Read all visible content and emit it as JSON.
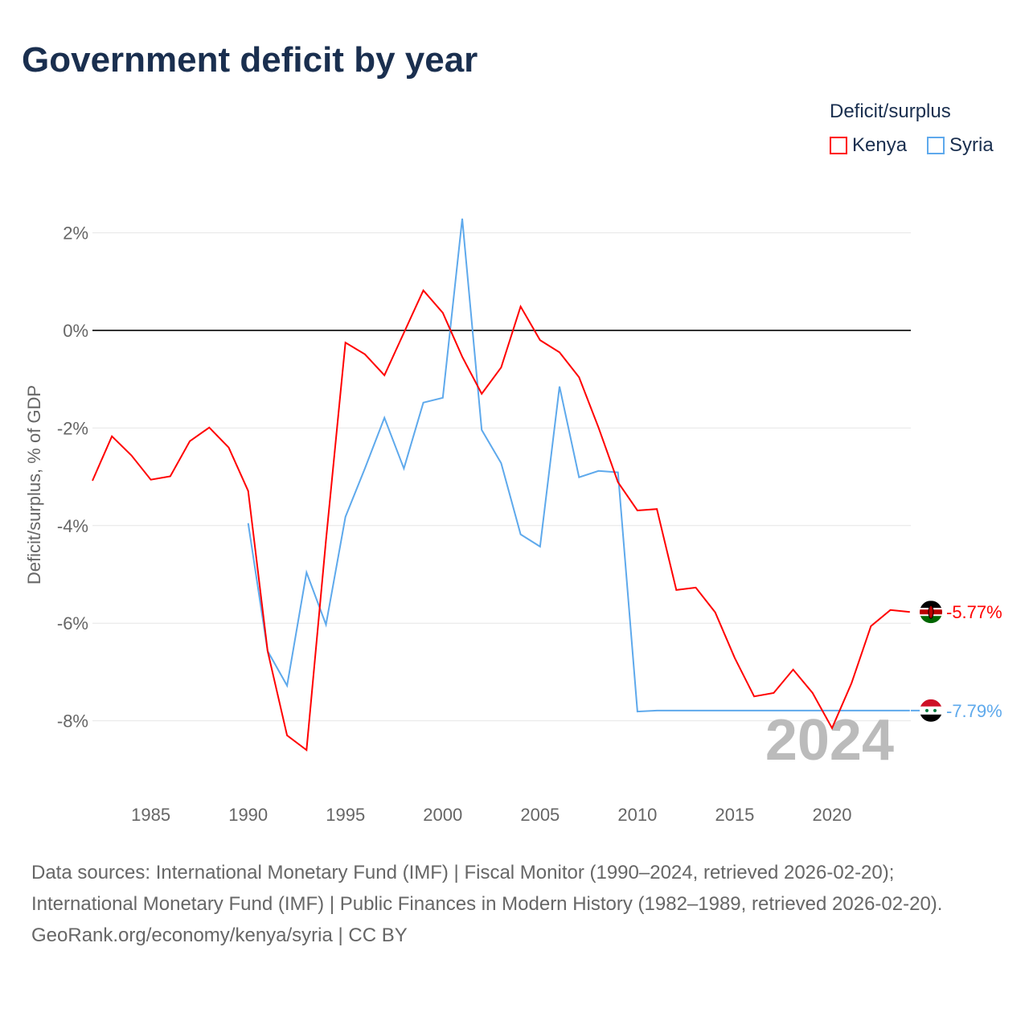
{
  "title": "Government deficit by year",
  "legend": {
    "title": "Deficit/surplus",
    "items": [
      {
        "name": "Kenya",
        "color": "#ff0000"
      },
      {
        "name": "Syria",
        "color": "#5ea9ec"
      }
    ]
  },
  "year_watermark": "2024",
  "sources": {
    "line1": "Data sources: International Monetary Fund (IMF) | Fiscal Monitor (1990–2024, retrieved 2026-02-20);",
    "line2": "International Monetary Fund (IMF) | Public Finances in Modern History (1982–1989, retrieved 2026-02-20).",
    "line3": "GeoRank.org/economy/kenya/syria | CC BY"
  },
  "chart_data": {
    "type": "line",
    "title": "Government deficit by year",
    "xlabel": "",
    "ylabel": "Deficit/surplus, % of GDP",
    "xlim": [
      1982,
      2024
    ],
    "ylim": [
      -9.5,
      3
    ],
    "x_ticks": [
      1985,
      1990,
      1995,
      2000,
      2005,
      2010,
      2015,
      2020
    ],
    "y_ticks": [
      2,
      0,
      -2,
      -4,
      -6,
      -8
    ],
    "y_tick_labels": [
      "2%",
      "0%",
      "-2%",
      "-4%",
      "-6%",
      "-8%"
    ],
    "grid": true,
    "legend_position": "top-right",
    "series": [
      {
        "name": "Kenya",
        "color": "#ff0000",
        "end_label": "-5.77%",
        "x": [
          1982,
          1983,
          1984,
          1985,
          1986,
          1987,
          1988,
          1989,
          1990,
          1991,
          1992,
          1993,
          1994,
          1995,
          1996,
          1997,
          1998,
          1999,
          2000,
          2001,
          2002,
          2003,
          2004,
          2005,
          2006,
          2007,
          2008,
          2009,
          2010,
          2011,
          2012,
          2013,
          2014,
          2015,
          2016,
          2017,
          2018,
          2019,
          2020,
          2021,
          2022,
          2023,
          2024
        ],
        "values": [
          -3.08,
          -2.17,
          -2.56,
          -3.06,
          -2.99,
          -2.27,
          -1.99,
          -2.4,
          -3.29,
          -6.57,
          -8.3,
          -8.6,
          -4.3,
          -0.25,
          -0.49,
          -0.92,
          -0.05,
          0.82,
          0.36,
          -0.54,
          -1.3,
          -0.76,
          0.49,
          -0.2,
          -0.45,
          -0.96,
          -1.99,
          -3.11,
          -3.69,
          -3.66,
          -5.32,
          -5.27,
          -5.78,
          -6.71,
          -7.5,
          -7.43,
          -6.95,
          -7.43,
          -8.15,
          -7.23,
          -6.06,
          -5.73,
          -5.77
        ]
      },
      {
        "name": "Syria",
        "color": "#5ea9ec",
        "end_label": "-7.79%",
        "x": [
          1990,
          1991,
          1992,
          1993,
          1994,
          1995,
          1996,
          1997,
          1998,
          1999,
          2000,
          2001,
          2002,
          2003,
          2004,
          2005,
          2006,
          2007,
          2008,
          2009,
          2010,
          2011,
          2012,
          2013,
          2014,
          2015,
          2016,
          2017,
          2018,
          2019,
          2020,
          2021,
          2022,
          2023,
          2024
        ],
        "values": [
          -3.95,
          -6.57,
          -7.28,
          -4.96,
          -6.03,
          -3.82,
          -2.83,
          -1.79,
          -2.83,
          -1.48,
          -1.38,
          2.29,
          -2.04,
          -2.72,
          -4.18,
          -4.43,
          -1.15,
          -3.01,
          -2.88,
          -2.91,
          -7.81,
          -7.79,
          -7.79,
          -7.79,
          -7.79,
          -7.79,
          -7.79,
          -7.79,
          -7.79,
          -7.79,
          -7.79,
          -7.79,
          -7.79,
          -7.79,
          -7.79
        ]
      }
    ]
  }
}
